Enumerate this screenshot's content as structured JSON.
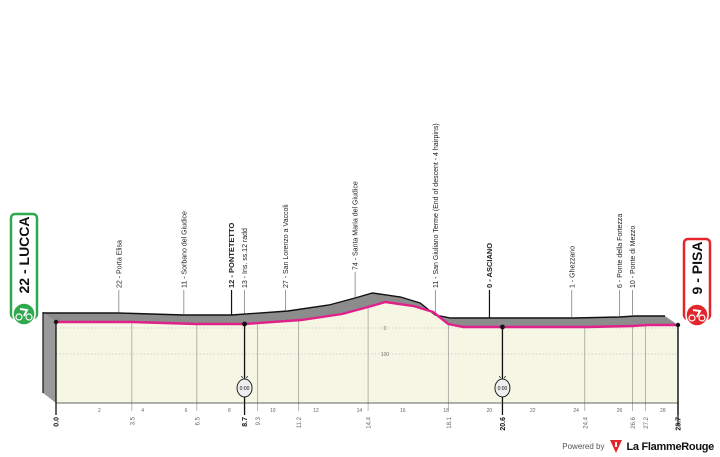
{
  "chart_data": {
    "type": "area",
    "title": "",
    "xlabel": "",
    "ylabel": "",
    "xlim": [
      0,
      28.7
    ],
    "x_ticks": [
      2,
      4,
      6,
      8,
      10,
      12,
      14,
      16,
      18,
      20,
      22,
      24,
      26,
      28
    ],
    "y_grid_labels": [
      "0",
      "100"
    ],
    "profile": {
      "km": [
        0,
        3.5,
        6.5,
        8.7,
        11.3,
        13.2,
        14.4,
        15.2,
        16.5,
        17.4,
        18.1,
        18.8,
        21.1,
        24.5,
        26.6,
        27.3,
        28.7
      ],
      "elevation": [
        36,
        36,
        32,
        32,
        40,
        52,
        66,
        76,
        68,
        56,
        32,
        26,
        26,
        26,
        28,
        30,
        30
      ]
    },
    "km_markers": [
      {
        "km": 0.0,
        "label": "0.0",
        "bold": true
      },
      {
        "km": 3.5,
        "label": "3.5",
        "bold": false
      },
      {
        "km": 6.5,
        "label": "6.5",
        "bold": false
      },
      {
        "km": 8.7,
        "label": "8.7",
        "bold": true
      },
      {
        "km": 9.3,
        "label": "9.3",
        "bold": false
      },
      {
        "km": 11.2,
        "label": "11.2",
        "bold": false
      },
      {
        "km": 14.4,
        "label": "14.4",
        "bold": false
      },
      {
        "km": 18.1,
        "label": "18.1",
        "bold": false
      },
      {
        "km": 20.6,
        "label": "20.6",
        "bold": true
      },
      {
        "km": 24.4,
        "label": "24.4",
        "bold": false
      },
      {
        "km": 26.6,
        "label": "26.6",
        "bold": false
      },
      {
        "km": 27.2,
        "label": "27.2",
        "bold": false
      },
      {
        "km": 28.7,
        "label": "28.7",
        "bold": true
      }
    ],
    "waypoints": [
      {
        "km": 3.5,
        "label": "22 - Porta Elisa",
        "bold": false
      },
      {
        "km": 6.5,
        "label": "11 - Sorbano del Giudice",
        "bold": false
      },
      {
        "km": 8.7,
        "label": "12 - PONTETETTO",
        "bold": true
      },
      {
        "km": 9.3,
        "label": "13 - Ins. ss.12 radd",
        "bold": false
      },
      {
        "km": 11.2,
        "label": "27 - San Lorenzo a Vaccoli",
        "bold": false
      },
      {
        "km": 14.4,
        "label": "74 - Santa Maria del Giudice",
        "bold": false
      },
      {
        "km": 18.1,
        "label": "11 - San Giuliano Terme (End of descent - 4 hairpins)",
        "bold": false
      },
      {
        "km": 20.6,
        "label": "0 - ASCIANO",
        "bold": true
      },
      {
        "km": 24.4,
        "label": "1 - Ghezzano",
        "bold": false
      },
      {
        "km": 26.6,
        "label": "6 - Ponte della Fortezza",
        "bold": false
      },
      {
        "km": 27.2,
        "label": "10 - Ponte di Mezzo",
        "bold": false
      }
    ],
    "time_checks": [
      {
        "km": 8.7,
        "label": "0:00"
      },
      {
        "km": 20.6,
        "label": "0:00"
      }
    ],
    "start": {
      "label": "22 - LUCCA",
      "color": "#2fa84f",
      "icon": "cyclist-icon"
    },
    "finish": {
      "label": "9 - PISA",
      "color": "#e3262b",
      "icon": "cyclist-icon"
    },
    "colors": {
      "route": "#e0218a",
      "band": "#8c8c8c",
      "fill": "#f6f6e4",
      "outline": "#111111"
    }
  },
  "footer": {
    "powered_by": "Powered by",
    "brand": "La FlammeRouge"
  }
}
